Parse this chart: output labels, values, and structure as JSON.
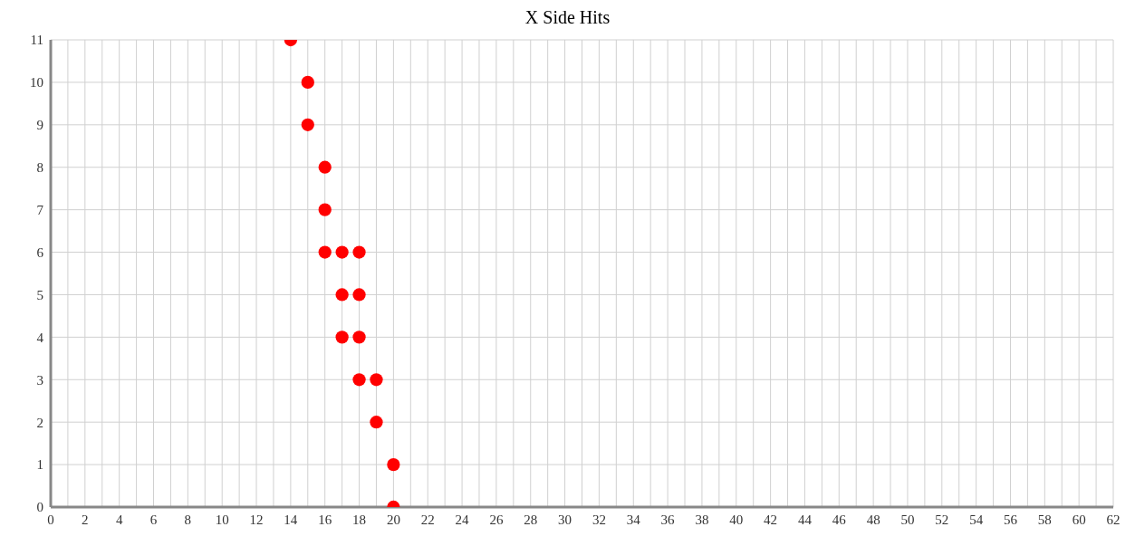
{
  "chart_data": {
    "type": "scatter",
    "title": "X Side Hits",
    "x": [
      14,
      15,
      15,
      16,
      16,
      16,
      17,
      18,
      17,
      18,
      17,
      18,
      18,
      19,
      19,
      20,
      20
    ],
    "values": [
      11,
      10,
      9,
      8,
      7,
      6,
      6,
      6,
      5,
      5,
      4,
      4,
      3,
      3,
      2,
      1,
      0
    ],
    "color": "#ff0000",
    "marker": "circle",
    "grid": true,
    "xlim": [
      0,
      62
    ],
    "xticks": [
      0,
      {
        "value": 1,
        "label": null
      },
      2,
      {
        "value": 3,
        "label": null
      },
      4,
      {
        "value": 5,
        "label": null
      },
      6,
      {
        "value": 7,
        "label": null
      },
      8,
      {
        "value": 9,
        "label": null
      },
      10,
      {
        "value": 11,
        "label": null
      },
      12,
      {
        "value": 13,
        "label": null
      },
      14,
      {
        "value": 15,
        "label": null
      },
      16,
      {
        "value": 17,
        "label": null
      },
      18,
      {
        "value": 19,
        "label": null
      },
      20,
      {
        "value": 21,
        "label": null
      },
      22,
      {
        "value": 23,
        "label": null
      },
      24,
      {
        "value": 25,
        "label": null
      },
      26,
      {
        "value": 27,
        "label": null
      },
      28,
      {
        "value": 29,
        "label": null
      },
      30,
      {
        "value": 31,
        "label": null
      },
      32,
      {
        "value": 33,
        "label": null
      },
      34,
      {
        "value": 35,
        "label": null
      },
      36,
      {
        "value": 37,
        "label": null
      },
      38,
      {
        "value": 39,
        "label": null
      },
      40,
      {
        "value": 41,
        "label": null
      },
      42,
      {
        "value": 43,
        "label": null
      },
      44,
      {
        "value": 45,
        "label": null
      },
      46,
      {
        "value": 47,
        "label": null
      },
      48,
      {
        "value": 49,
        "label": null
      },
      50,
      {
        "value": 51,
        "label": null
      },
      52,
      {
        "value": 53,
        "label": null
      },
      54,
      {
        "value": 55,
        "label": null
      },
      56,
      {
        "value": 57,
        "label": null
      },
      58,
      {
        "value": 59,
        "label": null
      },
      60,
      {
        "value": 61,
        "label": null
      },
      62
    ],
    "ylim": [
      0,
      11
    ],
    "yticks": [
      0,
      1,
      2,
      3,
      4,
      5,
      6,
      7,
      8,
      9,
      10,
      11
    ]
  }
}
